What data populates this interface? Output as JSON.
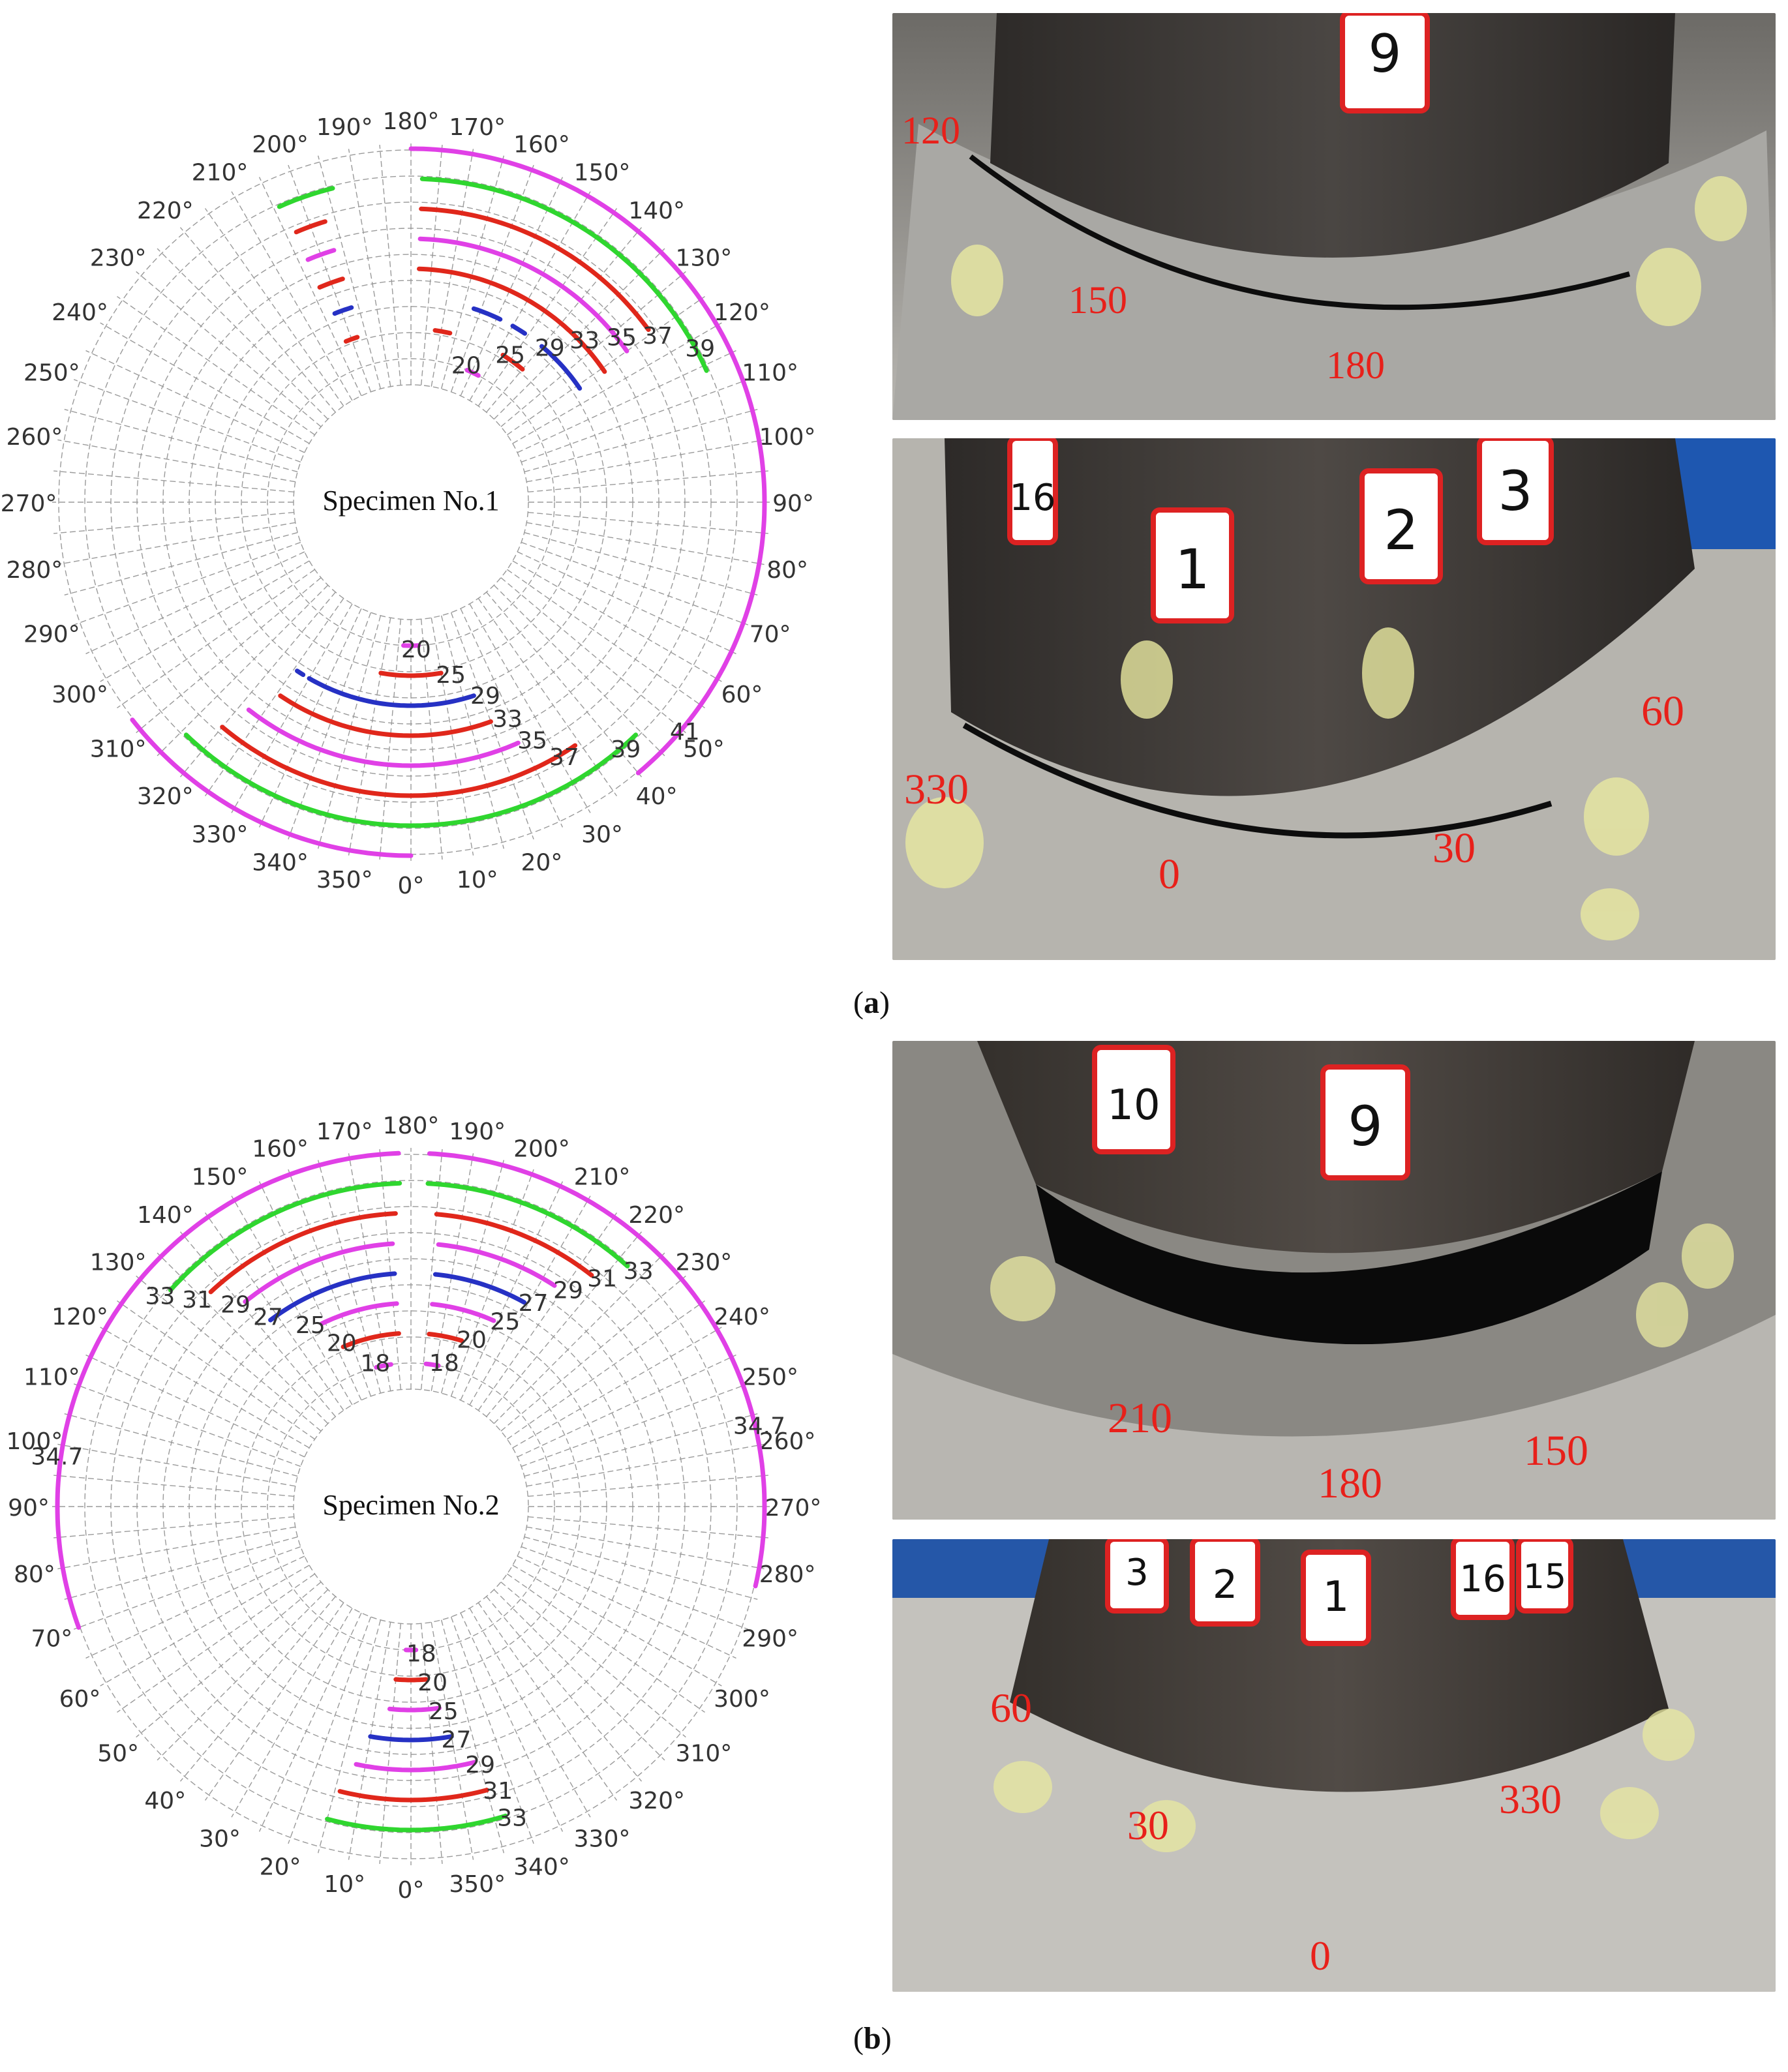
{
  "captions": {
    "a": "a",
    "b": "b"
  },
  "colors": {
    "magenta": "#e040e6",
    "green": "#2fd62f",
    "red": "#e0271b",
    "blue": "#2631c4",
    "photo_label": "#e8201a"
  },
  "chart_data": [
    {
      "type": "polar",
      "title": "Specimen No.1",
      "angle_direction": "counterclockwise",
      "angle_zero": "bottom",
      "angle_tick_labels": [
        "0°",
        "10°",
        "20°",
        "30°",
        "40°",
        "50°",
        "60°",
        "70°",
        "80°",
        "90°",
        "100°",
        "110°",
        "120°",
        "130°",
        "140°",
        "150°",
        "160°",
        "170°",
        "180°",
        "190°",
        "200°",
        "210°",
        "220°",
        "230°",
        "240°",
        "250°",
        "260°",
        "270°",
        "280°",
        "290°",
        "300°",
        "310°",
        "320°",
        "330°",
        "340°",
        "350°"
      ],
      "radial_ticks": [
        20,
        25,
        29,
        33,
        35,
        37,
        39,
        41
      ],
      "upper_cracks": [
        {
          "cycle": 20,
          "color": "magenta",
          "arcs": [
            [
              152,
              157
            ]
          ]
        },
        {
          "cycle": 25,
          "color": "red",
          "arcs": [
            [
              140,
              148
            ],
            [
              167,
              172
            ],
            [
              198,
              202
            ]
          ]
        },
        {
          "cycle": 29,
          "color": "blue",
          "arcs": [
            [
              124,
              140
            ],
            [
              146,
              150
            ],
            [
              154,
              162
            ],
            [
              197,
              202
            ]
          ]
        },
        {
          "cycle": 33,
          "color": "red",
          "arcs": [
            [
              124,
              178
            ],
            [
              197,
              203
            ]
          ]
        },
        {
          "cycle": 35,
          "color": "magenta",
          "arcs": [
            [
              125,
              178
            ],
            [
              197,
              203
            ]
          ]
        },
        {
          "cycle": 37,
          "color": "red",
          "arcs": [
            [
              126,
              178
            ],
            [
              197,
              203
            ]
          ]
        },
        {
          "cycle": 39,
          "color": "green",
          "arcs": [
            [
              114,
              178
            ],
            [
              194,
              204
            ]
          ]
        },
        {
          "cycle": 41,
          "color": "magenta",
          "arcs": [
            [
              40,
              180
            ]
          ]
        }
      ],
      "lower_cracks": [
        {
          "cycle": 20,
          "color": "magenta",
          "arcs": [
            [
              -3,
              3
            ]
          ]
        },
        {
          "cycle": 25,
          "color": "red",
          "arcs": [
            [
              -10,
              10
            ]
          ]
        },
        {
          "cycle": 29,
          "color": "blue",
          "arcs": [
            [
              -30,
              18
            ],
            [
              -34,
              -32
            ]
          ]
        },
        {
          "cycle": 33,
          "color": "red",
          "arcs": [
            [
              -34,
              20
            ]
          ]
        },
        {
          "cycle": 35,
          "color": "magenta",
          "arcs": [
            [
              -38,
              24
            ]
          ]
        },
        {
          "cycle": 37,
          "color": "red",
          "arcs": [
            [
              -40,
              34
            ]
          ]
        },
        {
          "cycle": 39,
          "color": "green",
          "arcs": [
            [
              -44,
              44
            ]
          ]
        },
        {
          "cycle": 41,
          "color": "magenta",
          "arcs": [
            [
              -52,
              0
            ]
          ]
        }
      ],
      "radial_labels": [
        {
          "text": "20",
          "angle": 158,
          "cycle": 20,
          "side": "upper"
        },
        {
          "text": "25",
          "angle": 146,
          "cycle": 25,
          "side": "upper"
        },
        {
          "text": "29",
          "angle": 138,
          "cycle": 29,
          "side": "upper"
        },
        {
          "text": "33",
          "angle": 133,
          "cycle": 33,
          "side": "upper"
        },
        {
          "text": "35",
          "angle": 128,
          "cycle": 35,
          "side": "upper"
        },
        {
          "text": "37",
          "angle": 124,
          "cycle": 37,
          "side": "upper"
        },
        {
          "text": "39",
          "angle": 118,
          "cycle": 39,
          "side": "upper"
        },
        {
          "text": "20",
          "angle": 2,
          "cycle": 20,
          "side": "lower"
        },
        {
          "text": "25",
          "angle": 13,
          "cycle": 25,
          "side": "lower"
        },
        {
          "text": "29",
          "angle": 21,
          "cycle": 29,
          "side": "lower"
        },
        {
          "text": "33",
          "angle": 24,
          "cycle": 33,
          "side": "lower"
        },
        {
          "text": "35",
          "angle": 27,
          "cycle": 35,
          "side": "lower"
        },
        {
          "text": "37",
          "angle": 31,
          "cycle": 37,
          "side": "lower"
        },
        {
          "text": "39",
          "angle": 41,
          "cycle": 39,
          "side": "lower"
        },
        {
          "text": "41",
          "angle": 50,
          "cycle": 41,
          "side": "lower"
        }
      ]
    },
    {
      "type": "polar",
      "title": "Specimen No.2",
      "angle_direction": "clockwise",
      "angle_zero": "bottom",
      "angle_tick_labels": [
        "0°",
        "10°",
        "20°",
        "30°",
        "40°",
        "50°",
        "60°",
        "70°",
        "80°",
        "90°",
        "100°",
        "110°",
        "120°",
        "130°",
        "140°",
        "150°",
        "160°",
        "170°",
        "180°",
        "190°",
        "200°",
        "210°",
        "220°",
        "230°",
        "240°",
        "250°",
        "260°",
        "270°",
        "280°",
        "290°",
        "300°",
        "310°",
        "320°",
        "330°",
        "340°",
        "350°"
      ],
      "radial_ticks": [
        18,
        20,
        25,
        27,
        29,
        31,
        33,
        34.7
      ],
      "upper_cracks": [
        {
          "cycle": 18,
          "color": "magenta",
          "arcs": [
            [
              166,
              172
            ],
            [
              186,
              191
            ]
          ]
        },
        {
          "cycle": 20,
          "color": "red",
          "arcs": [
            [
              157,
              176
            ],
            [
              186,
              197
            ]
          ]
        },
        {
          "cycle": 25,
          "color": "magenta",
          "arcs": [
            [
              154,
              176
            ],
            [
              186,
              204
            ]
          ]
        },
        {
          "cycle": 27,
          "color": "blue",
          "arcs": [
            [
              143,
              176
            ],
            [
              186,
              209
            ]
          ]
        },
        {
          "cycle": 29,
          "color": "magenta",
          "arcs": [
            [
              141,
              176
            ],
            [
              186,
              213
            ]
          ]
        },
        {
          "cycle": 31,
          "color": "red",
          "arcs": [
            [
              137,
              177
            ],
            [
              185,
              218
            ]
          ]
        },
        {
          "cycle": 33,
          "color": "green",
          "arcs": [
            [
              132,
              178
            ],
            [
              183,
              222
            ]
          ]
        },
        {
          "cycle": 34.7,
          "color": "magenta",
          "arcs": [
            [
              70,
              178
            ],
            [
              183,
              283
            ]
          ]
        }
      ],
      "lower_cracks": [
        {
          "cycle": 18,
          "color": "magenta",
          "arcs": [
            [
              -2,
              2
            ]
          ]
        },
        {
          "cycle": 20,
          "color": "red",
          "arcs": [
            [
              -5,
              5
            ]
          ]
        },
        {
          "cycle": 25,
          "color": "magenta",
          "arcs": [
            [
              -8,
              6
            ]
          ]
        },
        {
          "cycle": 27,
          "color": "blue",
          "arcs": [
            [
              -10,
              10
            ]
          ]
        },
        {
          "cycle": 29,
          "color": "magenta",
          "arcs": [
            [
              -14,
              12
            ]
          ]
        },
        {
          "cycle": 31,
          "color": "red",
          "arcs": [
            [
              -15,
              14
            ]
          ]
        },
        {
          "cycle": 33,
          "color": "green",
          "arcs": [
            [
              -17,
              15
            ]
          ]
        }
      ],
      "radial_labels": [
        {
          "text": "18",
          "angle": 166,
          "cycle": 18,
          "side": "upper"
        },
        {
          "text": "20",
          "angle": 157,
          "cycle": 20,
          "side": "upper"
        },
        {
          "text": "25",
          "angle": 151,
          "cycle": 25,
          "side": "upper"
        },
        {
          "text": "27",
          "angle": 143,
          "cycle": 27,
          "side": "upper"
        },
        {
          "text": "29",
          "angle": 139,
          "cycle": 29,
          "side": "upper"
        },
        {
          "text": "31",
          "angle": 134,
          "cycle": 31,
          "side": "upper"
        },
        {
          "text": "33",
          "angle": 130,
          "cycle": 33,
          "side": "upper"
        },
        {
          "text": "18",
          "angle": 193,
          "cycle": 18,
          "side": "upper"
        },
        {
          "text": "20",
          "angle": 200,
          "cycle": 20,
          "side": "upper"
        },
        {
          "text": "25",
          "angle": 207,
          "cycle": 25,
          "side": "upper"
        },
        {
          "text": "27",
          "angle": 211,
          "cycle": 27,
          "side": "upper"
        },
        {
          "text": "29",
          "angle": 216,
          "cycle": 29,
          "side": "upper"
        },
        {
          "text": "31",
          "angle": 220,
          "cycle": 31,
          "side": "upper"
        },
        {
          "text": "33",
          "angle": 224,
          "cycle": 33,
          "side": "upper"
        },
        {
          "text": "34.7",
          "angle": 98,
          "cycle": 34.7,
          "side": "upper"
        },
        {
          "text": "34.7",
          "angle": 257,
          "cycle": 34.7,
          "side": "upper"
        },
        {
          "text": "18",
          "angle": -4,
          "cycle": 18,
          "side": "lower"
        },
        {
          "text": "20",
          "angle": -7,
          "cycle": 20,
          "side": "lower"
        },
        {
          "text": "25",
          "angle": -9,
          "cycle": 25,
          "side": "lower"
        },
        {
          "text": "27",
          "angle": -11,
          "cycle": 27,
          "side": "lower"
        },
        {
          "text": "29",
          "angle": -15,
          "cycle": 29,
          "side": "lower"
        },
        {
          "text": "31",
          "angle": -17,
          "cycle": 31,
          "side": "lower"
        },
        {
          "text": "33",
          "angle": -18,
          "cycle": 33,
          "side": "lower"
        }
      ]
    }
  ],
  "photos": {
    "a_top": {
      "angle_labels": [
        "120",
        "150",
        "180"
      ],
      "tag_numbers": [
        "9"
      ]
    },
    "a_bottom": {
      "angle_labels": [
        "330",
        "0",
        "30",
        "60"
      ],
      "tag_numbers": [
        "16",
        "1",
        "2",
        "3"
      ]
    },
    "b_top": {
      "angle_labels": [
        "210",
        "180",
        "150"
      ],
      "tag_numbers": [
        "10",
        "9"
      ]
    },
    "b_bottom": {
      "angle_labels": [
        "60",
        "30",
        "0",
        "330"
      ],
      "tag_numbers": [
        "3",
        "2",
        "1",
        "16",
        "15"
      ]
    }
  }
}
